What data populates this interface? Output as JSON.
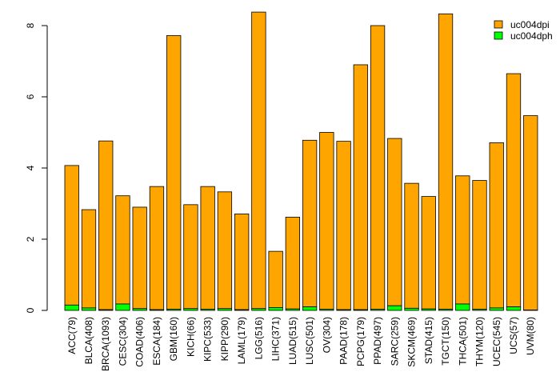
{
  "chart_data": {
    "type": "bar",
    "stacked": true,
    "categories": [
      "ACC(79)",
      "BLCA(408)",
      "BRCA(1093)",
      "CESC(304)",
      "COAD(406)",
      "ESCA(184)",
      "GBM(160)",
      "KICH(66)",
      "KIPC(533)",
      "KIPP(290)",
      "LAML(179)",
      "LGG(516)",
      "LIHC(371)",
      "LUAD(515)",
      "LUSC(501)",
      "OV(304)",
      "PAAD(178)",
      "PCPG(179)",
      "PPAD(497)",
      "SARC(259)",
      "SKCM(469)",
      "STAD(415)",
      "TGCT(150)",
      "THCA(501)",
      "THYM(120)",
      "UCEC(545)",
      "UCS(57)",
      "UVM(80)"
    ],
    "series": [
      {
        "name": "uc004dph",
        "color": "#00ff00",
        "values": [
          0.15,
          0.07,
          0.02,
          0.18,
          0.05,
          0.02,
          0.03,
          0.05,
          0.03,
          0.05,
          0.02,
          0.05,
          0.08,
          0.04,
          0.1,
          0.03,
          0.02,
          0.02,
          0.03,
          0.13,
          0.06,
          0.04,
          0.03,
          0.18,
          0.03,
          0.07,
          0.1,
          0.01
        ]
      },
      {
        "name": "uc004dpi",
        "color": "#ffa500",
        "values": [
          3.92,
          2.76,
          4.74,
          3.04,
          2.85,
          3.46,
          7.69,
          2.92,
          3.45,
          3.28,
          2.69,
          8.33,
          1.58,
          2.58,
          4.68,
          4.97,
          4.73,
          6.88,
          7.97,
          4.7,
          3.51,
          3.16,
          8.3,
          3.6,
          3.62,
          4.64,
          6.55,
          5.46
        ]
      }
    ],
    "yticks": [
      0,
      2,
      4,
      6,
      8
    ],
    "ylim": [
      0,
      8.4
    ],
    "legend_position": "top-right",
    "grid": false,
    "x_tick_rotation": "vertical"
  }
}
